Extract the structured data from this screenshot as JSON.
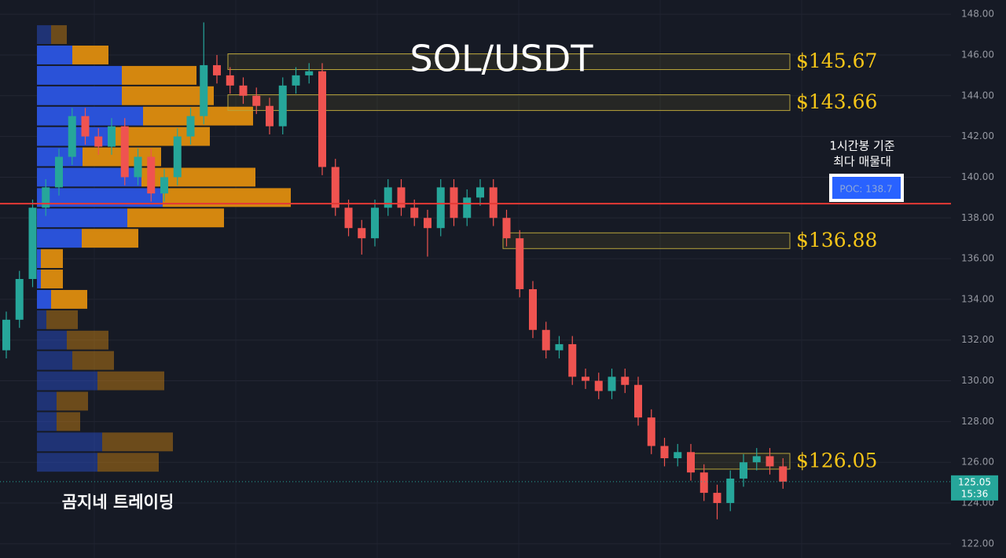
{
  "chart_data": {
    "type": "candlestick",
    "title": "SOL/USDT",
    "annotation": [
      "1시간봉 기준",
      "최다 매물대"
    ],
    "watermark": "곰지네 트레이딩",
    "ylim": [
      121.3,
      148.7
    ],
    "yticks": [
      {
        "value": 122,
        "label": "122.00"
      },
      {
        "value": 124,
        "label": "124.00"
      },
      {
        "value": 126,
        "label": "126.00"
      },
      {
        "value": 128,
        "label": "128.00"
      },
      {
        "value": 130,
        "label": "130.00"
      },
      {
        "value": 132,
        "label": "132.00"
      },
      {
        "value": 134,
        "label": "134.00"
      },
      {
        "value": 136,
        "label": "136.00"
      },
      {
        "value": 138,
        "label": "138.00"
      },
      {
        "value": 140,
        "label": "140.00"
      },
      {
        "value": 142,
        "label": "142.00"
      },
      {
        "value": 144,
        "label": "144.00"
      },
      {
        "value": 146,
        "label": "146.00"
      },
      {
        "value": 148,
        "label": "148.00"
      }
    ],
    "grid": true,
    "up_color": "#26a69a",
    "down_color": "#ef5350",
    "open": [
      131.5,
      133,
      135,
      138.5,
      139.5,
      141,
      143,
      142,
      141.5,
      142.5,
      140,
      141,
      139.2,
      140,
      142,
      143,
      145.5,
      145,
      144.5,
      144,
      143.5,
      142.5,
      144.5,
      145,
      145.2,
      140.5,
      138.5,
      137.5,
      137,
      138.5,
      139.5,
      138.5,
      138,
      137.5,
      139.5,
      138,
      139,
      139.5,
      138,
      137,
      134.5,
      132.5,
      131.5,
      131.8,
      130.2,
      130,
      129.5,
      130.2,
      129.8,
      128.2,
      126.8,
      126.2,
      126.5,
      125.5,
      124.5,
      124,
      125.2,
      126,
      126.3,
      125.8
    ],
    "high": [
      133.4,
      135.4,
      138.9,
      139.9,
      141.4,
      143.4,
      143.4,
      142.4,
      142.9,
      142.9,
      141.4,
      141.4,
      140.4,
      142.4,
      143.4,
      147.6,
      146,
      145.4,
      144.9,
      144.4,
      143.9,
      144.9,
      145.4,
      145.6,
      145.6,
      140.9,
      138.9,
      137.9,
      138.9,
      139.9,
      139.9,
      138.9,
      138.4,
      139.9,
      139.9,
      139.4,
      139.9,
      139.9,
      138.4,
      137.4,
      134.9,
      132.9,
      132.2,
      132.2,
      130.6,
      130.4,
      130.6,
      130.6,
      130.2,
      128.6,
      127.2,
      126.9,
      126.9,
      125.9,
      124.9,
      125.6,
      126.4,
      126.7,
      126.7,
      126.2
    ],
    "low": [
      131.1,
      132.6,
      134.6,
      138.1,
      139.1,
      140.6,
      141.6,
      141.1,
      141.1,
      139.6,
      139.6,
      138.8,
      138.8,
      139.6,
      141.6,
      142.6,
      144.6,
      144.1,
      143.6,
      143.1,
      142.1,
      142.1,
      144.1,
      144.6,
      140.1,
      138.1,
      137.1,
      136.2,
      136.6,
      138.1,
      138.1,
      137.6,
      136.1,
      137.1,
      137.6,
      137.6,
      138.6,
      137.6,
      136.6,
      134.1,
      132.1,
      131.1,
      131.1,
      129.8,
      129.6,
      129.1,
      129.1,
      129.4,
      127.8,
      126.4,
      125.8,
      125.8,
      125.1,
      124.1,
      123.2,
      123.6,
      124.8,
      125.6,
      125.4,
      124.7
    ],
    "close": [
      133,
      135,
      138.5,
      139.5,
      141,
      143,
      142,
      141.5,
      142.5,
      140,
      141,
      139.2,
      140,
      142,
      143,
      145.5,
      145,
      144.5,
      144,
      143.5,
      142.5,
      144.5,
      145,
      145.2,
      140.5,
      138.5,
      137.5,
      137,
      138.5,
      139.5,
      138.5,
      138,
      137.5,
      139.5,
      138,
      139,
      139.5,
      138,
      137,
      134.5,
      132.5,
      131.5,
      131.8,
      130.2,
      130,
      129.5,
      130.2,
      129.8,
      128.2,
      126.8,
      126.2,
      126.5,
      125.5,
      124.5,
      124,
      125.2,
      126,
      126.3,
      125.8,
      125.05
    ],
    "volume_profile": {
      "bins": [
        125.5,
        126.5,
        127.5,
        128.5,
        129.5,
        130.5,
        131.5,
        132.5,
        133.5,
        134.5,
        135.5,
        136.5,
        137.5,
        138.5,
        139.5,
        140.5,
        141.5,
        142.5,
        143.5,
        144.5,
        145.5,
        146.5,
        147.5
      ],
      "buy": [
        77,
        83,
        25,
        25,
        77,
        45,
        38,
        12,
        18,
        5,
        5,
        57,
        115,
        160,
        133,
        58,
        100,
        135,
        108,
        108,
        45,
        18
      ],
      "sell": [
        78,
        90,
        30,
        40,
        85,
        53,
        53,
        40,
        46,
        28,
        28,
        72,
        123,
        163,
        145,
        100,
        120,
        140,
        117,
        95,
        46,
        20
      ],
      "buy_color": "#2a52d8",
      "sell_color": "#d4870f",
      "value_area": [
        133.5,
        146.5
      ]
    },
    "levels": [
      145.67,
      143.66,
      136.88,
      126.05
    ],
    "level_labels": [
      "$145.67",
      "$143.66",
      "$136.88",
      "$126.05"
    ],
    "poc": 138.7,
    "poc_label": "POC: 138.7",
    "last_price": 125.05,
    "last_price_label": "125.05",
    "countdown": "15:36"
  }
}
